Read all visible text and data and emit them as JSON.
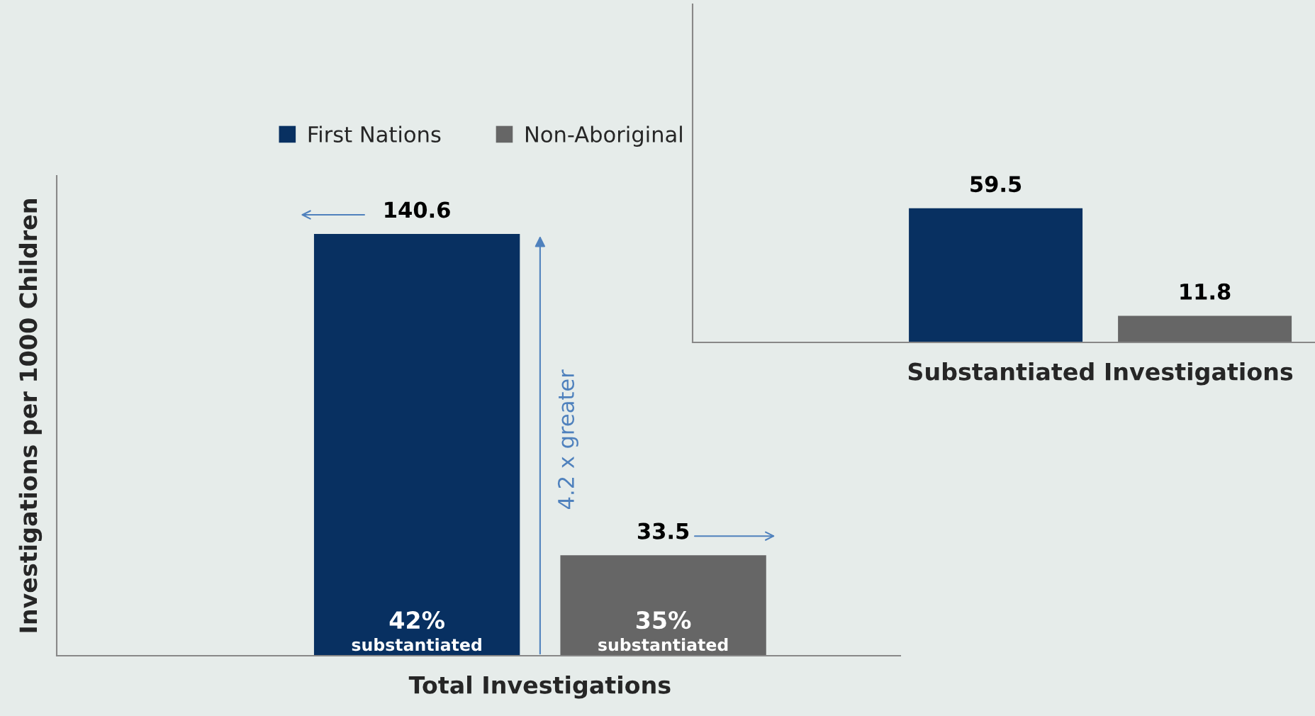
{
  "chart_data": [
    {
      "type": "bar",
      "ylabel": "Investigations per 1000 Children",
      "xlabel": "Total Investigations",
      "categories": [
        null
      ],
      "series": [
        {
          "name": "First Nations",
          "color": "#083061",
          "values": [
            140.6
          ]
        },
        {
          "name": "Non-Aboriginal",
          "color": "#666666",
          "values": [
            33.5
          ]
        }
      ],
      "data_labels": true,
      "legend": "top left",
      "grid": false,
      "annotations": [
        "42%",
        "substantiated",
        "35%",
        "substantiated",
        "4.2 x greater"
      ]
    },
    {
      "type": "bar",
      "xlabel": "Substantiated Investigations",
      "categories": [
        null
      ],
      "series": [
        {
          "color": "#083061",
          "values": [
            59.5
          ]
        },
        {
          "color": "#666666",
          "values": [
            11.8
          ]
        }
      ],
      "data_labels": true,
      "grid": false
    }
  ]
}
